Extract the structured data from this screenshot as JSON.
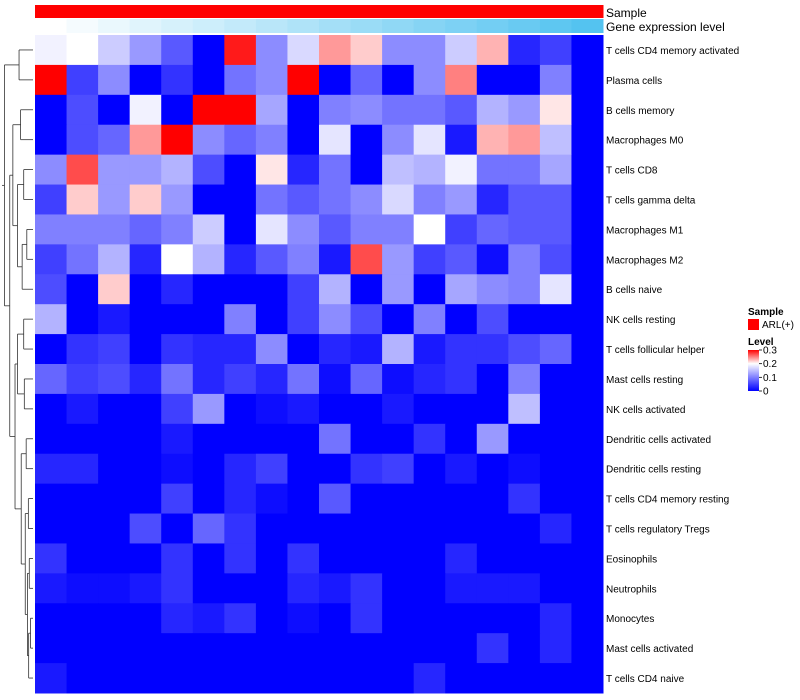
{
  "chart_data": {
    "type": "heatmap",
    "title": "",
    "annotation_tracks": [
      {
        "name": "Sample",
        "label": "Sample",
        "color": "#ff0000",
        "values": [
          "ARL(+)",
          "ARL(+)",
          "ARL(+)",
          "ARL(+)",
          "ARL(+)",
          "ARL(+)",
          "ARL(+)",
          "ARL(+)",
          "ARL(+)",
          "ARL(+)",
          "ARL(+)",
          "ARL(+)",
          "ARL(+)",
          "ARL(+)",
          "ARL(+)",
          "ARL(+)",
          "ARL(+)",
          "ARL(+)"
        ]
      },
      {
        "name": "Gene expression level",
        "label": "Gene expression level",
        "low_color": "#ffffff",
        "high_color": "#54c3f0",
        "values": [
          0.0,
          0.06,
          0.12,
          0.18,
          0.24,
          0.29,
          0.35,
          0.41,
          0.47,
          0.53,
          0.59,
          0.65,
          0.71,
          0.76,
          0.82,
          0.88,
          0.94,
          1.0
        ]
      }
    ],
    "rows": [
      "T cells CD4 memory activated",
      "Plasma cells",
      "B cells memory",
      "Macrophages M0",
      "T cells CD8",
      "T cells gamma delta",
      "Macrophages M1",
      "Macrophages M2",
      "B cells naive",
      "NK cells resting",
      "T cells follicular helper",
      "Mast cells resting",
      "NK cells activated",
      "Dendritic cells activated",
      "Dendritic cells resting",
      "T cells CD4 memory resting",
      "T cells regulatory  Tregs",
      "Eosinophils",
      "Neutrophils",
      "Monocytes",
      "Mast cells activated",
      "T cells CD4 naive"
    ],
    "values": [
      [
        0.19,
        0.2,
        0.16,
        0.12,
        0.07,
        0.0,
        0.29,
        0.11,
        0.17,
        0.24,
        0.22,
        0.11,
        0.11,
        0.16,
        0.23,
        0.03,
        0.05,
        null
      ],
      [
        0.3,
        0.05,
        0.11,
        0.0,
        0.04,
        0.0,
        0.09,
        0.11,
        0.3,
        0.0,
        0.08,
        0.0,
        0.11,
        0.25,
        0.0,
        0.0,
        0.1,
        null
      ],
      [
        0.0,
        0.06,
        0.0,
        0.19,
        0.0,
        0.3,
        0.3,
        0.13,
        0.0,
        0.1,
        0.11,
        0.09,
        0.09,
        0.07,
        0.14,
        0.12,
        0.21,
        null
      ],
      [
        0.0,
        0.06,
        0.08,
        0.24,
        0.3,
        0.11,
        0.08,
        0.1,
        0.0,
        0.18,
        0.0,
        0.11,
        0.18,
        0.02,
        0.23,
        0.24,
        0.15,
        null
      ],
      [
        0.11,
        0.27,
        0.12,
        0.12,
        0.14,
        0.06,
        0.0,
        0.21,
        0.03,
        0.09,
        0.0,
        0.15,
        0.14,
        0.19,
        0.09,
        0.09,
        0.13,
        null
      ],
      [
        0.05,
        0.22,
        0.12,
        0.22,
        0.12,
        0.0,
        0.0,
        0.09,
        0.07,
        0.09,
        0.11,
        0.17,
        0.1,
        0.12,
        0.03,
        0.07,
        0.07,
        null
      ],
      [
        0.1,
        0.1,
        0.1,
        0.08,
        0.1,
        0.16,
        0.0,
        0.18,
        0.11,
        0.07,
        0.1,
        0.1,
        0.2,
        0.05,
        0.08,
        0.07,
        0.07,
        null
      ],
      [
        0.05,
        0.09,
        0.14,
        0.03,
        0.2,
        0.14,
        0.03,
        0.07,
        0.1,
        0.02,
        0.27,
        0.12,
        0.05,
        0.07,
        0.01,
        0.1,
        0.06,
        null
      ],
      [
        0.06,
        0.0,
        0.22,
        0.0,
        0.03,
        0.0,
        0.0,
        0.0,
        0.05,
        0.14,
        0.0,
        0.12,
        0.0,
        0.13,
        0.11,
        0.1,
        0.18,
        null
      ],
      [
        0.14,
        0.0,
        0.02,
        0.0,
        0.0,
        0.0,
        0.1,
        0.0,
        0.05,
        0.11,
        0.06,
        0.0,
        0.1,
        0.0,
        0.06,
        0.0,
        0.0,
        null
      ],
      [
        0.0,
        0.04,
        0.05,
        0.0,
        0.04,
        0.03,
        0.03,
        0.11,
        0.0,
        0.03,
        0.02,
        0.14,
        0.02,
        0.04,
        0.04,
        0.06,
        0.08,
        null
      ],
      [
        0.08,
        0.05,
        0.06,
        0.03,
        0.09,
        0.03,
        0.05,
        0.03,
        0.09,
        0.01,
        0.08,
        0.01,
        0.03,
        0.04,
        0.0,
        0.1,
        0.0,
        null
      ],
      [
        0.0,
        0.02,
        0.0,
        0.0,
        0.05,
        0.12,
        0.0,
        0.01,
        0.02,
        0.0,
        0.0,
        0.02,
        0.0,
        0.0,
        0.0,
        0.15,
        0.0,
        null
      ],
      [
        0.0,
        0.0,
        0.0,
        0.0,
        0.02,
        0.0,
        0.0,
        0.0,
        0.0,
        0.09,
        0.0,
        0.0,
        0.04,
        0.0,
        0.12,
        0.0,
        0.0,
        null
      ],
      [
        0.03,
        0.03,
        0.0,
        0.0,
        0.01,
        0.0,
        0.03,
        0.05,
        0.0,
        0.0,
        0.04,
        0.05,
        0.0,
        0.02,
        0.0,
        0.01,
        0.0,
        null
      ],
      [
        0.0,
        0.0,
        0.0,
        0.0,
        0.05,
        0.0,
        0.03,
        0.01,
        0.0,
        0.07,
        0.0,
        0.0,
        0.0,
        0.0,
        0.0,
        0.04,
        0.0,
        null
      ],
      [
        0.0,
        0.0,
        0.0,
        0.06,
        0.0,
        0.08,
        0.04,
        0.0,
        0.0,
        0.0,
        0.0,
        0.0,
        0.0,
        0.0,
        0.0,
        0.0,
        0.03,
        null
      ],
      [
        0.04,
        0.0,
        0.0,
        0.0,
        0.04,
        0.0,
        0.04,
        0.0,
        0.04,
        0.0,
        0.0,
        0.0,
        0.0,
        0.03,
        0.0,
        0.0,
        0.0,
        null
      ],
      [
        0.02,
        0.01,
        0.01,
        0.02,
        0.04,
        0.0,
        0.0,
        0.0,
        0.03,
        0.02,
        0.04,
        0.0,
        0.0,
        0.02,
        0.02,
        0.02,
        0.0,
        null
      ],
      [
        0.0,
        0.0,
        0.0,
        0.0,
        0.03,
        0.02,
        0.04,
        0.0,
        0.01,
        0.0,
        0.04,
        0.0,
        0.0,
        0.0,
        0.0,
        0.0,
        0.03,
        null
      ],
      [
        0.0,
        0.0,
        0.0,
        0.0,
        0.0,
        0.0,
        0.0,
        0.0,
        0.0,
        0.0,
        0.0,
        0.0,
        0.0,
        0.0,
        0.04,
        0.0,
        0.03,
        null
      ],
      [
        0.02,
        0.0,
        0.0,
        0.0,
        0.0,
        0.0,
        0.0,
        0.0,
        0.0,
        0.0,
        0.0,
        0.0,
        0.03,
        0.0,
        0.0,
        0.0,
        0.0,
        null
      ]
    ],
    "color_scale": {
      "min": 0,
      "max": 0.3,
      "low": "#0000ff",
      "mid": "#ffffff",
      "high": "#ff0000",
      "midpoint": 0.2
    },
    "legend": {
      "sample_title": "Sample",
      "sample_entry": "ARL(+)",
      "sample_color": "#ff0000",
      "level_title": "Level",
      "level_ticks": [
        {
          "label": "0.3",
          "value": 0.3
        },
        {
          "label": "0.2",
          "value": 0.2
        },
        {
          "label": "0.1",
          "value": 0.1
        },
        {
          "label": "0",
          "value": 0
        }
      ],
      "placement": "right"
    },
    "row_dendrogram": true
  }
}
